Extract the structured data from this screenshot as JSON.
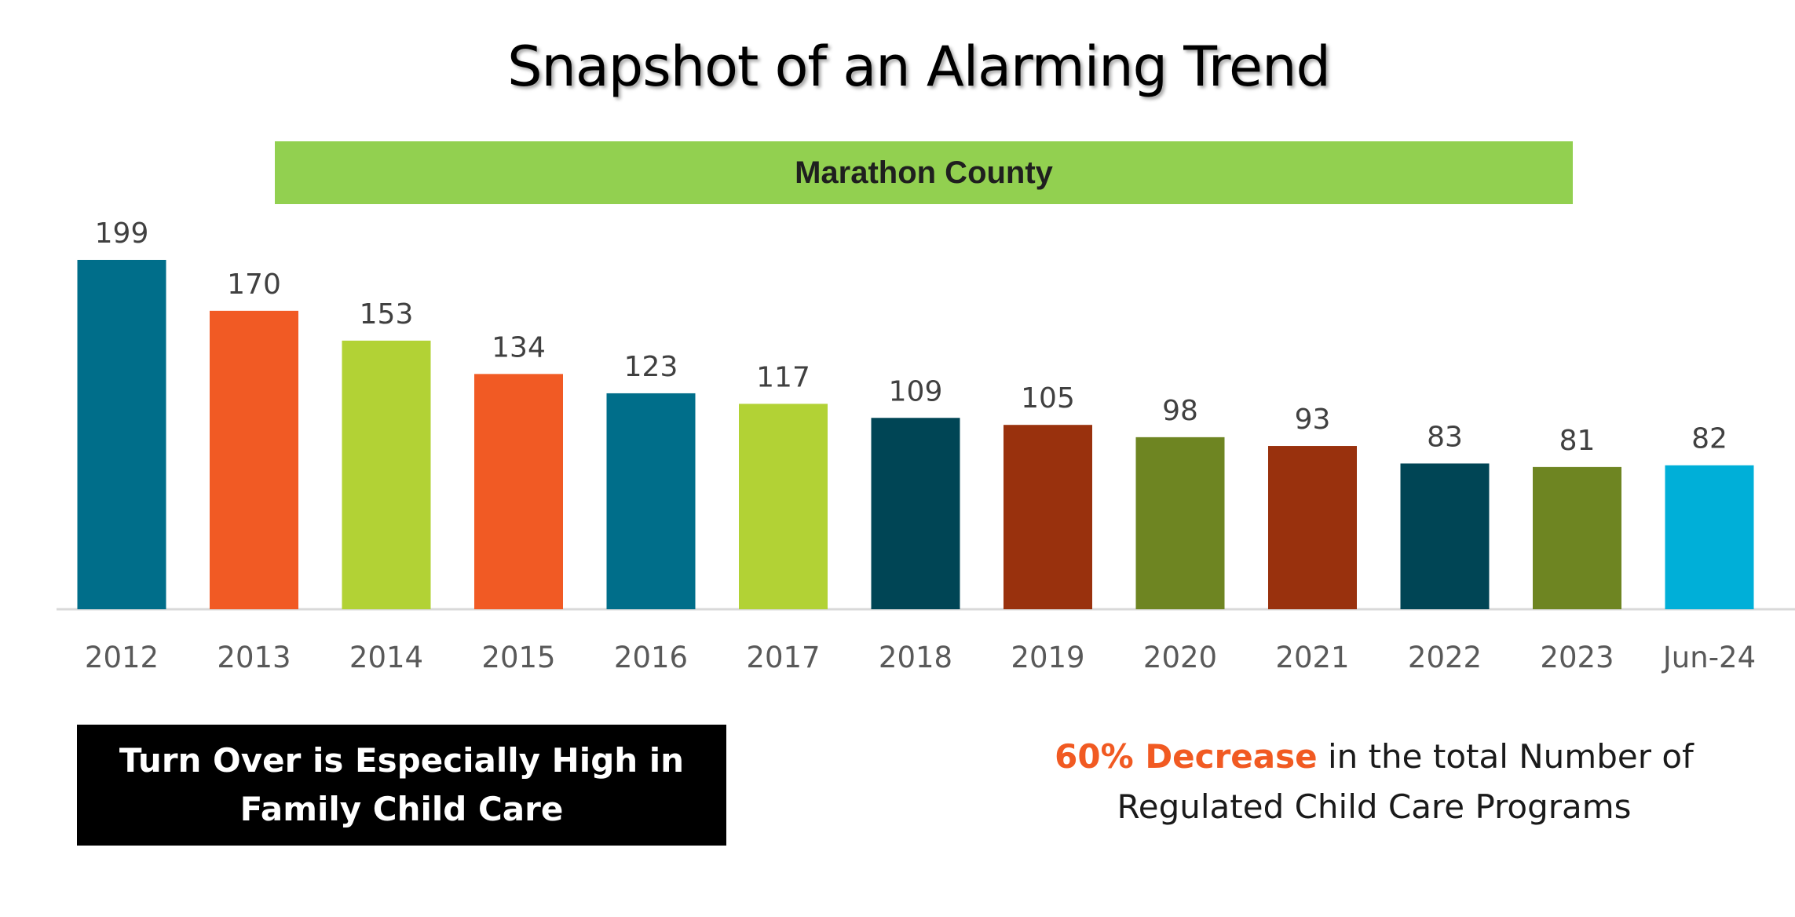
{
  "title": "Snapshot of an Alarming Trend",
  "banner": "Marathon County",
  "chart_data": {
    "type": "bar",
    "categories": [
      "2012",
      "2013",
      "2014",
      "2015",
      "2016",
      "2017",
      "2018",
      "2019",
      "2020",
      "2021",
      "2022",
      "2023",
      "Jun-24"
    ],
    "values": [
      199,
      170,
      153,
      134,
      123,
      117,
      109,
      105,
      98,
      93,
      83,
      81,
      82
    ],
    "bar_colors": [
      "#006e8a",
      "#f15a24",
      "#b2d235",
      "#f15a24",
      "#006e8a",
      "#b2d235",
      "#004555",
      "#99310d",
      "#6e8522",
      "#99310d",
      "#004555",
      "#6e8522",
      "#00afd8"
    ],
    "ylim": [
      0,
      210
    ],
    "data_labels": true,
    "grid": false,
    "title": "Marathon County"
  },
  "callout": {
    "line1": "Turn Over is Especially High in",
    "line2": "Family Child Care"
  },
  "note": {
    "highlight": "60% Decrease",
    "text1": " in the total Number of",
    "text2": "Regulated Child Care Programs"
  },
  "colors": {
    "banner": "#92d050",
    "highlight": "#f15a22",
    "callout_bg": "#000000"
  }
}
